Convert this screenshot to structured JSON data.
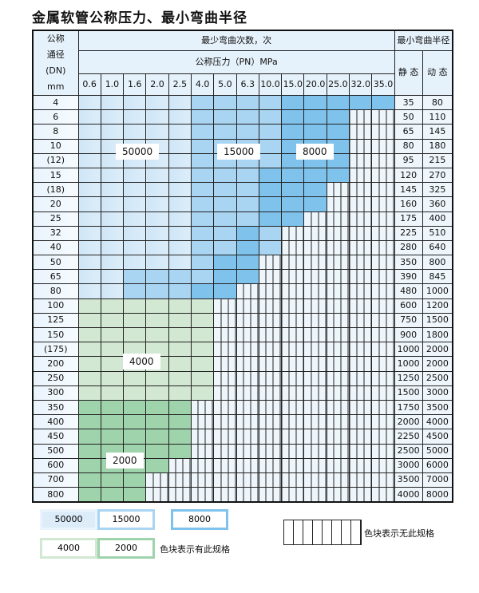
{
  "title": "金属软管公称压力、最小弯曲半径",
  "header": {
    "dn_label": [
      "公称",
      "通径",
      "(DN)",
      "mm"
    ],
    "bend_count": "最少弯曲次数，次",
    "pressure": "公称压力（PN）MPa",
    "min_radius": "最小弯曲半径",
    "static": "静 态",
    "dynamic": "动 态",
    "pn_values": [
      "0.6",
      "1.0",
      "1.6",
      "2.0",
      "2.5",
      "4.0",
      "5.0",
      "6.3",
      "10.0",
      "15.0",
      "20.0",
      "25.0",
      "32.0",
      "35.0"
    ]
  },
  "rows": [
    {
      "dn": "4",
      "cells": "aaaaabbbbccccc",
      "static": "35",
      "dynamic": "80"
    },
    {
      "dn": "6",
      "cells": "aaaaabbbbcccxx",
      "static": "50",
      "dynamic": "110"
    },
    {
      "dn": "8",
      "cells": "aaaaabbbbcccxx",
      "static": "65",
      "dynamic": "145"
    },
    {
      "dn": "10",
      "cells": "aaaaabbbbcccxx",
      "static": "80",
      "dynamic": "180"
    },
    {
      "dn": "(12)",
      "cells": "aaaaabbbbcccxx",
      "static": "95",
      "dynamic": "215"
    },
    {
      "dn": "15",
      "cells": "aaaaabbbccccxx",
      "static": "120",
      "dynamic": "270"
    },
    {
      "dn": "(18)",
      "cells": "aaaaabbbcccxxx",
      "static": "145",
      "dynamic": "325"
    },
    {
      "dn": "20",
      "cells": "aaaaabbbcccxxx",
      "static": "160",
      "dynamic": "360"
    },
    {
      "dn": "25",
      "cells": "aaaaabbbccxxxx",
      "static": "175",
      "dynamic": "400"
    },
    {
      "dn": "32",
      "cells": "aaaaabbcbxxxxx",
      "static": "225",
      "dynamic": "510"
    },
    {
      "dn": "40",
      "cells": "aaaaabbcbxxxxx",
      "static": "280",
      "dynamic": "640"
    },
    {
      "dn": "50",
      "cells": "aaaaabccxxxxxx",
      "static": "350",
      "dynamic": "800"
    },
    {
      "dn": "65",
      "cells": "aabbbbccxxxxxx",
      "static": "390",
      "dynamic": "845"
    },
    {
      "dn": "80",
      "cells": "aabbbccxxxxxxx",
      "static": "480",
      "dynamic": "1000"
    },
    {
      "dn": "100",
      "cells": "ddddddxxxxxxxx",
      "static": "600",
      "dynamic": "1200"
    },
    {
      "dn": "125",
      "cells": "ddddddxxxxxxxx",
      "static": "750",
      "dynamic": "1500"
    },
    {
      "dn": "150",
      "cells": "ddddddxxxxxxxx",
      "static": "900",
      "dynamic": "1800"
    },
    {
      "dn": "(175)",
      "cells": "ddddddxxxxxxxx",
      "static": "1000",
      "dynamic": "2000"
    },
    {
      "dn": "200",
      "cells": "ddddddxxxxxxxx",
      "static": "1000",
      "dynamic": "2000"
    },
    {
      "dn": "250",
      "cells": "ddddddxxxxxxxx",
      "static": "1250",
      "dynamic": "2500"
    },
    {
      "dn": "300",
      "cells": "ddddddxxxxxxxx",
      "static": "1500",
      "dynamic": "3000"
    },
    {
      "dn": "350",
      "cells": "eeeeexxxxxxxxx",
      "static": "1750",
      "dynamic": "3500"
    },
    {
      "dn": "400",
      "cells": "eeeeexxxxxxxxx",
      "static": "2000",
      "dynamic": "4000"
    },
    {
      "dn": "450",
      "cells": "eeeeexxxxxxxxx",
      "static": "2250",
      "dynamic": "4500"
    },
    {
      "dn": "500",
      "cells": "eeeeexxxxxxxxx",
      "static": "2500",
      "dynamic": "5000"
    },
    {
      "dn": "600",
      "cells": "eeeexxxxxxxxxx",
      "static": "3000",
      "dynamic": "6000"
    },
    {
      "dn": "700",
      "cells": "eeexxxxxxxxxxx",
      "static": "3500",
      "dynamic": "7000"
    },
    {
      "dn": "800",
      "cells": "eeexxxxxxxxxxx",
      "static": "4000",
      "dynamic": "8000"
    }
  ],
  "region_labels": {
    "a": "50000",
    "b": "15000",
    "c": "8000",
    "d": "4000",
    "e": "2000"
  },
  "legend": {
    "items": [
      "50000",
      "15000",
      "8000",
      "4000",
      "2000"
    ],
    "has_spec": "色块表示有此规格",
    "no_spec": "色块表示无此规格"
  },
  "colors": {
    "a": "#cfe6f7",
    "b": "#a9d4f2",
    "c": "#7fc2ec",
    "d": "#d2e8d2",
    "e": "#9fd3ab"
  }
}
